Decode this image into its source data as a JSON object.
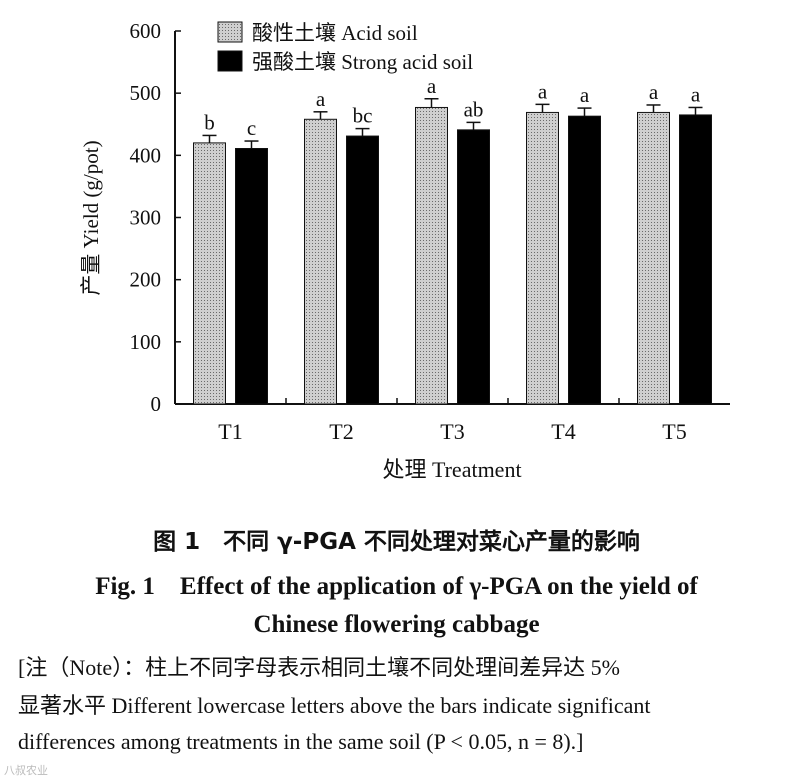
{
  "chart_data": {
    "type": "bar",
    "categories": [
      "T1",
      "T2",
      "T3",
      "T4",
      "T5"
    ],
    "series": [
      {
        "name": "酸性土壤 Acid soil",
        "color": "#b8b8b8",
        "pattern": "dotted",
        "values": [
          420,
          458,
          477,
          469,
          469
        ],
        "errors": [
          12,
          12,
          14,
          13,
          12
        ],
        "labels": [
          "b",
          "a",
          "a",
          "a",
          "a"
        ]
      },
      {
        "name": "强酸土壤 Strong acid soil",
        "color": "#000000",
        "pattern": "solid",
        "values": [
          411,
          431,
          441,
          463,
          465
        ],
        "errors": [
          12,
          12,
          12,
          13,
          12
        ],
        "labels": [
          "c",
          "bc",
          "ab",
          "a",
          "a"
        ]
      }
    ],
    "xlabel": "处理 Treatment",
    "ylabel": "产量 Yield (g/pot)",
    "ylim": [
      0,
      600
    ],
    "yticks": [
      0,
      100,
      200,
      300,
      400,
      500,
      600
    ],
    "grid": false,
    "legend": "top-left"
  },
  "caption": {
    "cn": "图 1　不同 γ-PGA 不同处理对菜心产量的影响",
    "en_line1": "Fig. 1　Effect of the application of γ-PGA on the yield of",
    "en_line2": "Chinese flowering cabbage"
  },
  "note": {
    "line1": "[注（Note）：柱上不同字母表示相同土壤不同处理间差异达 5%",
    "line2": "显著水平 Different lowercase letters above the bars indicate significant",
    "line3": "differences among treatments in the same soil (P < 0.05, n = 8).]"
  },
  "watermark": "八叔农业"
}
